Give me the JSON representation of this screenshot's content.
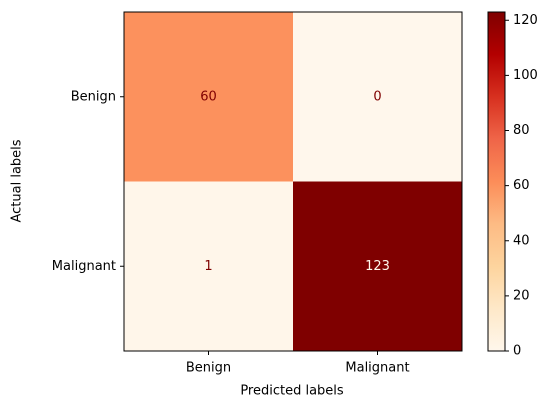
{
  "chart_data": {
    "type": "heatmap",
    "x_label": "Predicted labels",
    "y_label": "Actual labels",
    "x_categories": [
      "Benign",
      "Malignant"
    ],
    "y_categories": [
      "Benign",
      "Malignant"
    ],
    "values": [
      [
        60,
        0
      ],
      [
        1,
        123
      ]
    ],
    "colormap": "OrRd",
    "clim": [
      0,
      123
    ],
    "colorbar_ticks": [
      0,
      20,
      40,
      60,
      80,
      100,
      120
    ]
  }
}
